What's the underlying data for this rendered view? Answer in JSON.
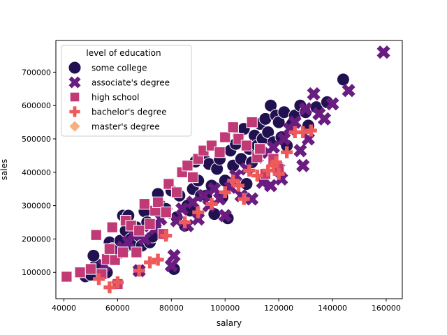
{
  "chart_data": {
    "type": "scatter",
    "title": "",
    "xlabel": "salary",
    "ylabel": "sales",
    "xlim": [
      37000,
      166000
    ],
    "ylim": [
      21000,
      795000
    ],
    "xticks": [
      40000,
      60000,
      80000,
      100000,
      120000,
      140000,
      160000
    ],
    "yticks": [
      100000,
      200000,
      300000,
      400000,
      500000,
      600000,
      700000
    ],
    "grid": false,
    "legend": {
      "title": "level of education",
      "placement": "top-left"
    },
    "series": [
      {
        "name": "some college",
        "marker": "circle",
        "color": "#221150",
        "points": [
          [
            48000,
            88000
          ],
          [
            50000,
            93000
          ],
          [
            52000,
            125000
          ],
          [
            51000,
            150000
          ],
          [
            56000,
            100000
          ],
          [
            57000,
            190000
          ],
          [
            58000,
            170000
          ],
          [
            61000,
            195000
          ],
          [
            62000,
            270000
          ],
          [
            63000,
            225000
          ],
          [
            64000,
            270000
          ],
          [
            65000,
            200000
          ],
          [
            66000,
            180000
          ],
          [
            67000,
            235000
          ],
          [
            68000,
            210000
          ],
          [
            69000,
            180000
          ],
          [
            70000,
            283000
          ],
          [
            71000,
            250000
          ],
          [
            72000,
            190000
          ],
          [
            73000,
            207000
          ],
          [
            74000,
            240000
          ],
          [
            75000,
            335000
          ],
          [
            76000,
            300000
          ],
          [
            78000,
            290000
          ],
          [
            80000,
            345000
          ],
          [
            81000,
            110000
          ],
          [
            82000,
            265000
          ],
          [
            83000,
            330000
          ],
          [
            85000,
            240000
          ],
          [
            86000,
            300000
          ],
          [
            87000,
            285000
          ],
          [
            88000,
            350000
          ],
          [
            89000,
            432000
          ],
          [
            90000,
            375000
          ],
          [
            91000,
            330000
          ],
          [
            92000,
            445000
          ],
          [
            93000,
            330000
          ],
          [
            94000,
            425000
          ],
          [
            95000,
            360000
          ],
          [
            96000,
            275000
          ],
          [
            97000,
            410000
          ],
          [
            98000,
            440000
          ],
          [
            99000,
            325000
          ],
          [
            100000,
            375000
          ],
          [
            101000,
            262000
          ],
          [
            102000,
            465000
          ],
          [
            103000,
            420000
          ],
          [
            104000,
            485000
          ],
          [
            105000,
            510000
          ],
          [
            106000,
            440000
          ],
          [
            107000,
            530000
          ],
          [
            108000,
            365000
          ],
          [
            109000,
            470000
          ],
          [
            110000,
            430000
          ],
          [
            111000,
            510000
          ],
          [
            112000,
            480000
          ],
          [
            113000,
            545000
          ],
          [
            114000,
            500000
          ],
          [
            115000,
            560000
          ],
          [
            116000,
            520000
          ],
          [
            117000,
            600000
          ],
          [
            118000,
            490000
          ],
          [
            119000,
            570000
          ],
          [
            120000,
            550000
          ],
          [
            121000,
            505000
          ],
          [
            122000,
            580000
          ],
          [
            123000,
            480000
          ],
          [
            125000,
            545000
          ],
          [
            126000,
            570000
          ],
          [
            128000,
            600000
          ],
          [
            130000,
            580000
          ],
          [
            131000,
            540000
          ],
          [
            134000,
            595000
          ],
          [
            138000,
            610000
          ],
          [
            144000,
            678000
          ]
        ]
      },
      {
        "name": "associate's degree",
        "marker": "x",
        "color": "#6a1c81",
        "points": [
          [
            55000,
            120000
          ],
          [
            58000,
            145000
          ],
          [
            60000,
            160000
          ],
          [
            62000,
            175000
          ],
          [
            64000,
            190000
          ],
          [
            66000,
            215000
          ],
          [
            68000,
            105000
          ],
          [
            70000,
            200000
          ],
          [
            72000,
            240000
          ],
          [
            74000,
            230000
          ],
          [
            76000,
            260000
          ],
          [
            78000,
            280000
          ],
          [
            80000,
            120000
          ],
          [
            81000,
            150000
          ],
          [
            82000,
            255000
          ],
          [
            84000,
            290000
          ],
          [
            86000,
            240000
          ],
          [
            88000,
            310000
          ],
          [
            90000,
            260000
          ],
          [
            92000,
            330000
          ],
          [
            94000,
            300000
          ],
          [
            96000,
            350000
          ],
          [
            98000,
            320000
          ],
          [
            100000,
            270000
          ],
          [
            102000,
            355000
          ],
          [
            104000,
            390000
          ],
          [
            106000,
            330000
          ],
          [
            108000,
            410000
          ],
          [
            110000,
            320000
          ],
          [
            112000,
            445000
          ],
          [
            114000,
            370000
          ],
          [
            116000,
            460000
          ],
          [
            117000,
            360000
          ],
          [
            118000,
            475000
          ],
          [
            120000,
            410000
          ],
          [
            121000,
            380000
          ],
          [
            122000,
            500000
          ],
          [
            124000,
            530000
          ],
          [
            126000,
            550000
          ],
          [
            128000,
            465000
          ],
          [
            129000,
            420000
          ],
          [
            130000,
            590000
          ],
          [
            131000,
            500000
          ],
          [
            133000,
            635000
          ],
          [
            135000,
            575000
          ],
          [
            137000,
            560000
          ],
          [
            140000,
            605000
          ],
          [
            146000,
            645000
          ],
          [
            159000,
            760000
          ]
        ]
      },
      {
        "name": "high school",
        "marker": "square",
        "color": "#c13a75",
        "points": [
          [
            41000,
            87000
          ],
          [
            46000,
            100000
          ],
          [
            50000,
            110000
          ],
          [
            52000,
            212000
          ],
          [
            54000,
            95000
          ],
          [
            56000,
            140000
          ],
          [
            57000,
            170000
          ],
          [
            58000,
            235000
          ],
          [
            59000,
            137000
          ],
          [
            60000,
            65000
          ],
          [
            62000,
            160000
          ],
          [
            63000,
            255000
          ],
          [
            65000,
            240000
          ],
          [
            67000,
            160000
          ],
          [
            68000,
            225000
          ],
          [
            70000,
            305000
          ],
          [
            72000,
            245000
          ],
          [
            74000,
            285000
          ],
          [
            75000,
            310000
          ],
          [
            77000,
            215000
          ],
          [
            78000,
            280000
          ],
          [
            79000,
            365000
          ],
          [
            82000,
            340000
          ],
          [
            84000,
            400000
          ],
          [
            86000,
            420000
          ],
          [
            88000,
            385000
          ],
          [
            90000,
            440000
          ],
          [
            92000,
            465000
          ],
          [
            95000,
            480000
          ],
          [
            98000,
            460000
          ],
          [
            100000,
            505000
          ],
          [
            103000,
            535000
          ],
          [
            105000,
            500000
          ],
          [
            108000,
            480000
          ],
          [
            110000,
            550000
          ],
          [
            112000,
            445000
          ],
          [
            113000,
            470000
          ],
          [
            115000,
            395000
          ],
          [
            118000,
            440000
          ],
          [
            120000,
            410000
          ]
        ]
      },
      {
        "name": "bachelor's degree",
        "marker": "plus",
        "color": "#ee5a5a",
        "points": [
          [
            53000,
            80000
          ],
          [
            57000,
            55000
          ],
          [
            60000,
            70000
          ],
          [
            68000,
            105000
          ],
          [
            72000,
            130000
          ],
          [
            75000,
            138000
          ],
          [
            78000,
            210000
          ],
          [
            85000,
            250000
          ],
          [
            90000,
            280000
          ],
          [
            95000,
            305000
          ],
          [
            100000,
            340000
          ],
          [
            103000,
            375000
          ],
          [
            105000,
            360000
          ],
          [
            107000,
            320000
          ],
          [
            109000,
            405000
          ],
          [
            112000,
            390000
          ],
          [
            116000,
            405000
          ],
          [
            118000,
            420000
          ],
          [
            119000,
            430000
          ],
          [
            120000,
            395000
          ],
          [
            123000,
            460000
          ],
          [
            126000,
            520000
          ],
          [
            129000,
            520000
          ],
          [
            132000,
            525000
          ]
        ]
      },
      {
        "name": "master's degree",
        "marker": "diamond",
        "color": "#fab07c",
        "points": []
      }
    ]
  }
}
